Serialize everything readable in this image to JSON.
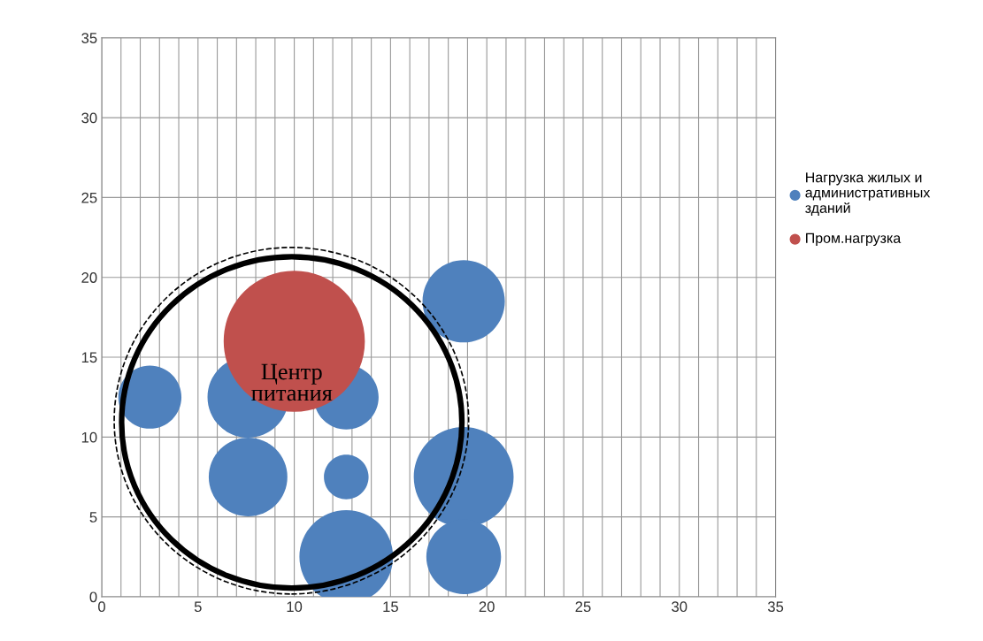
{
  "chart_data": {
    "type": "bubble",
    "series": [
      {
        "name": "Нагрузка жилых и\nадминистративных\nзданий",
        "color": "#4f81bd",
        "x": [
          2.5,
          7.6,
          12.7,
          7.6,
          12.7,
          18.8,
          18.8,
          12.7,
          18.8
        ],
        "values": [
          12.5,
          12.5,
          12.5,
          7.5,
          7.5,
          18.5,
          7.5,
          2.5,
          2.5
        ],
        "sizes": [
          0.2,
          0.33,
          0.21,
          0.31,
          0.1,
          0.34,
          0.5,
          0.44,
          0.28
        ]
      },
      {
        "name": "Пром.нагрузка",
        "color": "#c0504d",
        "x": [
          10
        ],
        "values": [
          16
        ],
        "sizes": [
          1
        ]
      }
    ],
    "xlim": [
      0,
      35
    ],
    "ylim": [
      0,
      35
    ],
    "xticks": [
      0,
      {
        "value": 1,
        "label": null
      },
      {
        "value": 2,
        "label": null
      },
      {
        "value": 3,
        "label": null
      },
      {
        "value": 4,
        "label": null
      },
      5,
      {
        "value": 6,
        "label": null
      },
      {
        "value": 7,
        "label": null
      },
      {
        "value": 8,
        "label": null
      },
      {
        "value": 9,
        "label": null
      },
      10,
      {
        "value": 11,
        "label": null
      },
      {
        "value": 12,
        "label": null
      },
      {
        "value": 13,
        "label": null
      },
      {
        "value": 14,
        "label": null
      },
      15,
      {
        "value": 16,
        "label": null
      },
      {
        "value": 17,
        "label": null
      },
      {
        "value": 18,
        "label": null
      },
      {
        "value": 19,
        "label": null
      },
      20,
      {
        "value": 21,
        "label": null
      },
      {
        "value": 22,
        "label": null
      },
      {
        "value": 23,
        "label": null
      },
      {
        "value": 24,
        "label": null
      },
      25,
      {
        "value": 26,
        "label": null
      },
      {
        "value": 27,
        "label": null
      },
      {
        "value": 28,
        "label": null
      },
      {
        "value": 29,
        "label": null
      },
      30,
      {
        "value": 31,
        "label": null
      },
      {
        "value": 32,
        "label": null
      },
      {
        "value": 33,
        "label": null
      },
      {
        "value": 34,
        "label": null
      },
      35
    ],
    "yticks": [
      0,
      5,
      10,
      15,
      20,
      25,
      30,
      35
    ],
    "grid": true,
    "legend": "right",
    "annotations": [
      "Центр\nпитания"
    ]
  }
}
